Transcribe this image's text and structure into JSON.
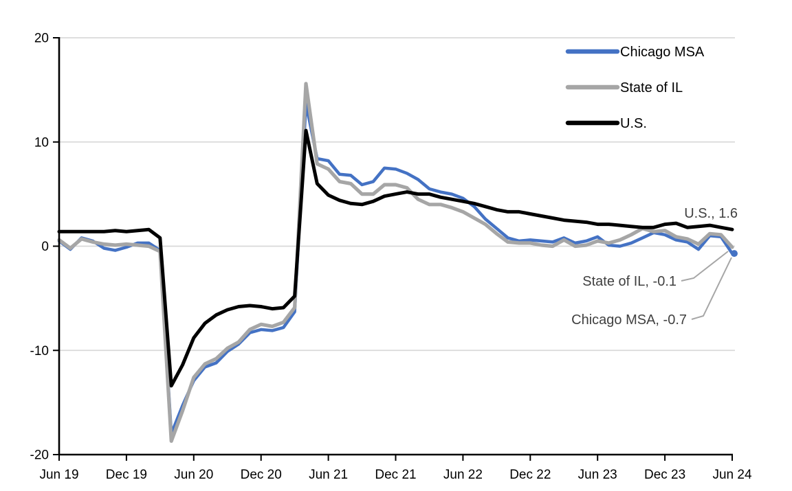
{
  "chart_data": {
    "type": "line",
    "title": "",
    "xlabel": "",
    "ylabel": "",
    "ylim": [
      -20,
      20
    ],
    "y_ticks": [
      20,
      10,
      0,
      -10,
      -20
    ],
    "x_tick_labels": [
      "Jun 19",
      "Dec 19",
      "Jun 20",
      "Dec 20",
      "Jun 21",
      "Dec 21",
      "Jun 22",
      "Dec 22",
      "Jun 23",
      "Dec 23",
      "Jun 24"
    ],
    "grid": "horizontal",
    "legend_position": "top-right-inside",
    "x": [
      "Jun 19",
      "Jul 19",
      "Aug 19",
      "Sep 19",
      "Oct 19",
      "Nov 19",
      "Dec 19",
      "Jan 20",
      "Feb 20",
      "Mar 20",
      "Apr 20",
      "May 20",
      "Jun 20",
      "Jul 20",
      "Aug 20",
      "Sep 20",
      "Oct 20",
      "Nov 20",
      "Dec 20",
      "Jan 21",
      "Feb 21",
      "Mar 21",
      "Apr 21",
      "May 21",
      "Jun 21",
      "Jul 21",
      "Aug 21",
      "Sep 21",
      "Oct 21",
      "Nov 21",
      "Dec 21",
      "Jan 22",
      "Feb 22",
      "Mar 22",
      "Apr 22",
      "May 22",
      "Jun 22",
      "Jul 22",
      "Aug 22",
      "Sep 22",
      "Oct 22",
      "Nov 22",
      "Dec 22",
      "Jan 23",
      "Feb 23",
      "Mar 23",
      "Apr 23",
      "May 23",
      "Jun 23",
      "Jul 23",
      "Aug 23",
      "Sep 23",
      "Oct 23",
      "Nov 23",
      "Dec 23",
      "Jan 24",
      "Feb 24",
      "Mar 24",
      "Apr 24",
      "May 24",
      "Jun 24"
    ],
    "series": [
      {
        "name": "Chicago MSA",
        "color": "#4472C4",
        "end_value": -0.7,
        "end_dot": true,
        "values": [
          0.5,
          -0.3,
          0.8,
          0.5,
          -0.2,
          -0.4,
          -0.1,
          0.3,
          0.3,
          -0.4,
          -18.0,
          -15.3,
          -12.9,
          -11.6,
          -11.2,
          -10.1,
          -9.4,
          -8.3,
          -8.0,
          -8.1,
          -7.8,
          -6.3,
          13.7,
          8.4,
          8.2,
          6.9,
          6.8,
          5.9,
          6.2,
          7.5,
          7.4,
          7.0,
          6.4,
          5.5,
          5.2,
          5.0,
          4.6,
          3.8,
          2.6,
          1.7,
          0.8,
          0.5,
          0.6,
          0.5,
          0.4,
          0.8,
          0.3,
          0.5,
          0.9,
          0.1,
          0.0,
          0.3,
          0.8,
          1.3,
          1.1,
          0.6,
          0.4,
          -0.3,
          1.0,
          0.9,
          -0.7
        ]
      },
      {
        "name": "State of IL",
        "color": "#A6A6A6",
        "end_value": -0.1,
        "end_dot": false,
        "values": [
          0.6,
          -0.2,
          0.7,
          0.4,
          0.2,
          0.1,
          0.2,
          0.1,
          0.0,
          -0.5,
          -18.7,
          -15.8,
          -12.6,
          -11.3,
          -10.8,
          -9.8,
          -9.2,
          -8.0,
          -7.5,
          -7.7,
          -7.3,
          -5.9,
          15.6,
          7.9,
          7.4,
          6.2,
          6.0,
          5.0,
          5.0,
          5.9,
          5.9,
          5.6,
          4.5,
          4.0,
          4.0,
          3.7,
          3.3,
          2.7,
          2.1,
          1.2,
          0.4,
          0.3,
          0.3,
          0.1,
          0.0,
          0.6,
          0.0,
          0.1,
          0.5,
          0.3,
          0.6,
          1.1,
          1.7,
          1.4,
          1.5,
          0.9,
          0.7,
          0.2,
          1.2,
          1.1,
          -0.1
        ]
      },
      {
        "name": "U.S.",
        "color": "#000000",
        "end_value": 1.6,
        "end_dot": false,
        "values": [
          1.4,
          1.4,
          1.4,
          1.4,
          1.4,
          1.5,
          1.4,
          1.5,
          1.6,
          0.8,
          -13.4,
          -11.4,
          -8.8,
          -7.4,
          -6.6,
          -6.1,
          -5.8,
          -5.7,
          -5.8,
          -6.0,
          -5.9,
          -4.8,
          11.1,
          6.0,
          4.9,
          4.4,
          4.1,
          4.0,
          4.3,
          4.8,
          5.0,
          5.2,
          5.0,
          5.0,
          4.7,
          4.5,
          4.3,
          4.1,
          3.8,
          3.5,
          3.3,
          3.3,
          3.1,
          2.9,
          2.7,
          2.5,
          2.4,
          2.3,
          2.1,
          2.1,
          2.0,
          1.9,
          1.8,
          1.8,
          2.1,
          2.2,
          1.8,
          1.9,
          2.0,
          1.8,
          1.6
        ]
      }
    ],
    "annotations": [
      {
        "text": "U.S., 1.6",
        "series": "U.S."
      },
      {
        "text": "State of IL, -0.1",
        "series": "State of IL"
      },
      {
        "text": "Chicago MSA, -0.7",
        "series": "Chicago MSA"
      }
    ],
    "legend_items": [
      "Chicago MSA",
      "State of IL",
      "U.S."
    ]
  },
  "colors": {
    "chicago_msa": "#4472C4",
    "state_of_il": "#A6A6A6",
    "us": "#000000",
    "gridline": "#D9D9D9",
    "axis": "#000000",
    "annotation_text": "#404040",
    "leader_line": "#A6A6A6",
    "background": "#FFFFFF"
  }
}
